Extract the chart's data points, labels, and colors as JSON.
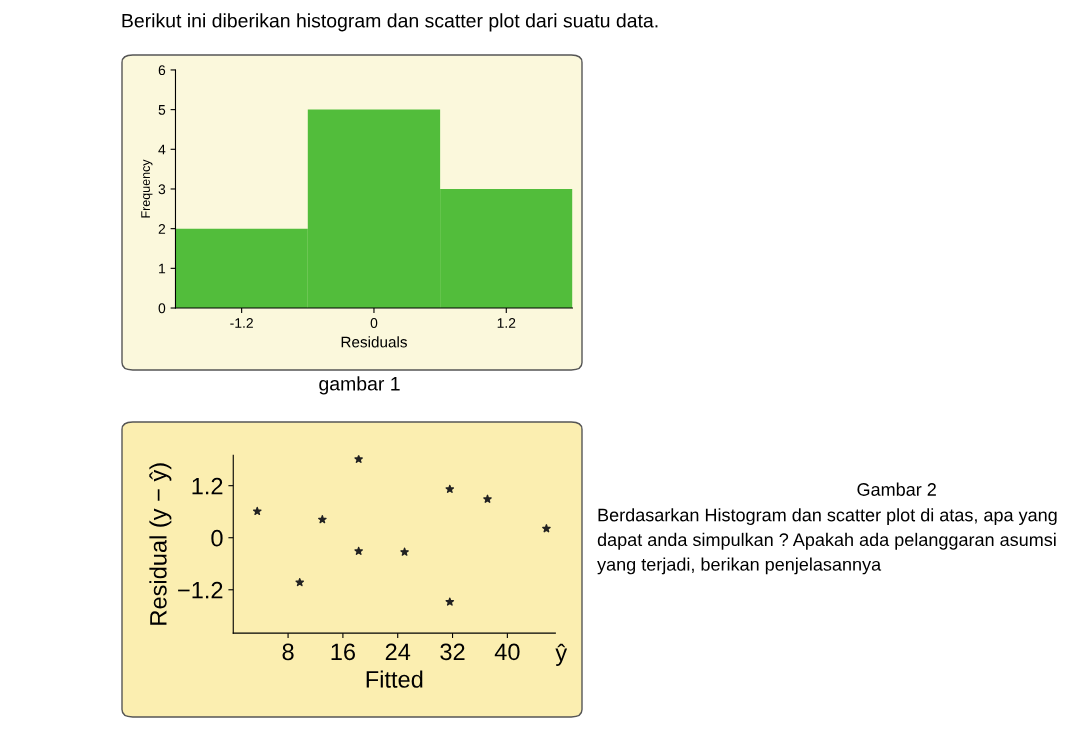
{
  "chart_data": [
    {
      "type": "histogram",
      "title": "Berikut ini diberikan histogram dan scatter plot dari suatu data.",
      "xlabel": "Residuals",
      "ylabel": "Frequency",
      "bins": [
        -1.8,
        -0.6,
        0.6,
        1.8
      ],
      "values": [
        2,
        5,
        3
      ],
      "color": "#52bd3b",
      "xlim": [
        -1.8,
        1.8
      ],
      "xticks": [
        -1.2,
        0,
        1.2
      ],
      "ylim": [
        0,
        6
      ],
      "yticks": [
        0,
        1,
        2,
        3,
        4,
        5,
        6
      ],
      "grid": false,
      "annotations": [
        "gambar 1"
      ]
    },
    {
      "type": "scatter",
      "xlabel": "Fitted",
      "ylabel": "Residual (y − ŷ)",
      "marker": "star",
      "color": "#222222",
      "x": [
        3.5,
        9.7,
        13.0,
        18.3,
        18.3,
        25.0,
        31.6,
        31.6,
        37.1,
        45.7
      ],
      "values": [
        0.61,
        -1.03,
        0.42,
        1.81,
        -0.31,
        -0.33,
        1.12,
        -1.48,
        0.89,
        0.21
      ],
      "xlim": [
        0,
        47
      ],
      "xticks": [
        8,
        16,
        24,
        32,
        40
      ],
      "ylim": [
        -2.2,
        1.9
      ],
      "yticks": [
        {
          "value": -1.2,
          "label": "−1.2"
        },
        0,
        1.2
      ],
      "grid": false,
      "annotations": [
        "ŷ",
        "Gambar 2",
        "Berdasarkan Histogram dan scatter plot di atas, apa yang dapat anda simpulkan ? Apakah ada pelanggaran asumsi yang terjadi, berikan penjelasannya"
      ]
    }
  ]
}
